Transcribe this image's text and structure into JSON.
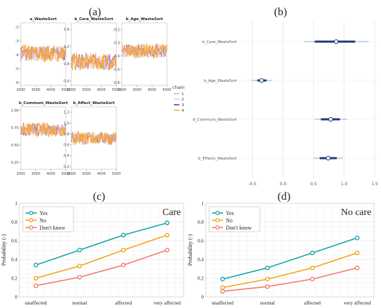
{
  "panel_letters": [
    "(a)",
    "(b)",
    "(c)",
    "(d)"
  ],
  "colors": {
    "chain1": "#f4a9a0",
    "chain2": "#d0cdf0",
    "chain3": "#5d3f9e",
    "chain4": "#f7a43a",
    "yes": "#17a4a6",
    "no": "#f2a516",
    "dont_know": "#f27b6b",
    "interval": "#1b3a7a"
  },
  "chart_data": [
    {
      "id": "a",
      "type": "line",
      "kind": "trace_plots",
      "chains_legend_title": "chain",
      "chains": [
        "1",
        "2",
        "3",
        "4"
      ],
      "x_ticks": [
        "2000",
        "3000",
        "4000",
        "5000"
      ],
      "x_range": [
        2000,
        5000
      ],
      "panels": [
        {
          "title": "a_WasteSort",
          "y_ticks": [
            "-2",
            "-3",
            "-4",
            "-5",
            "-6"
          ],
          "ylim": [
            -6.2,
            -1.7
          ],
          "center": -3.9,
          "spread": 0.55
        },
        {
          "title": "b_Care_WasteSort",
          "y_ticks": [
            "1.6",
            "1.2",
            "0.8",
            "0.4"
          ],
          "ylim": [
            0.3,
            1.75
          ],
          "center": 0.85,
          "spread": 0.18
        },
        {
          "title": "b_Age_WasteSort",
          "y_ticks": [
            "-0.2",
            "-0.3",
            "-0.4",
            "-0.5",
            "-0.6"
          ],
          "ylim": [
            -0.62,
            -0.15
          ],
          "center": -0.36,
          "spread": 0.05
        },
        {
          "title": "b_Communi_WasteSort",
          "y_ticks": [
            "1.00",
            "0.75",
            "0.50",
            "0.25"
          ],
          "ylim": [
            0.15,
            1.05
          ],
          "center": 0.72,
          "spread": 0.09
        },
        {
          "title": "b_Affect_WasteSort",
          "y_ticks": [
            "1.2",
            "1.0",
            "0.8",
            "0.6",
            "0.4",
            "0.2"
          ],
          "ylim": [
            0.15,
            1.3
          ],
          "center": 0.72,
          "spread": 0.11
        }
      ]
    },
    {
      "id": "b",
      "type": "scatter",
      "kind": "interval_plot",
      "x_ticks": [
        "-0.5",
        "0.0",
        "0.5",
        "1.0",
        "1.5"
      ],
      "xlim": [
        -0.72,
        1.58
      ],
      "params": [
        {
          "label": "b_Care_WasteSort",
          "mean": 0.87,
          "inner": [
            0.52,
            1.18
          ],
          "outer": [
            0.35,
            1.4
          ]
        },
        {
          "label": "b_Age_WasteSort",
          "mean": -0.35,
          "inner": [
            -0.42,
            -0.27
          ],
          "outer": [
            -0.52,
            -0.18
          ]
        },
        {
          "label": "b_Communi_WasteSort",
          "mean": 0.78,
          "inner": [
            0.62,
            0.93
          ],
          "outer": [
            0.52,
            1.05
          ]
        },
        {
          "label": "b_Effects_WasteSort",
          "mean": 0.74,
          "inner": [
            0.6,
            0.88
          ],
          "outer": [
            0.5,
            0.98
          ]
        }
      ]
    },
    {
      "id": "c",
      "type": "line",
      "title": "Care",
      "categories": [
        "unaffected",
        "normal",
        "affected",
        "very affected"
      ],
      "ylabel": "Probability (-)",
      "ylim": [
        0,
        1
      ],
      "y_ticks": [
        "0",
        "0.2",
        "0.4",
        "0.6",
        "0.8",
        "1"
      ],
      "series": [
        {
          "name": "Yes",
          "values": [
            0.34,
            0.5,
            0.66,
            0.79
          ]
        },
        {
          "name": "No",
          "values": [
            0.2,
            0.33,
            0.5,
            0.66
          ]
        },
        {
          "name": "Don't know",
          "values": [
            0.12,
            0.21,
            0.34,
            0.5
          ]
        }
      ]
    },
    {
      "id": "d",
      "type": "line",
      "title": "No care",
      "categories": [
        "unaffected",
        "normal",
        "affected",
        "very affected"
      ],
      "ylabel": "Probability (-)",
      "ylim": [
        0,
        1
      ],
      "y_ticks": [
        "0",
        "0.2",
        "0.4",
        "0.6",
        "0.8",
        "1"
      ],
      "series": [
        {
          "name": "Yes",
          "values": [
            0.19,
            0.31,
            0.47,
            0.63
          ]
        },
        {
          "name": "No",
          "values": [
            0.1,
            0.19,
            0.31,
            0.47
          ]
        },
        {
          "name": "Don't know",
          "values": [
            0.06,
            0.11,
            0.19,
            0.31
          ]
        }
      ]
    }
  ]
}
